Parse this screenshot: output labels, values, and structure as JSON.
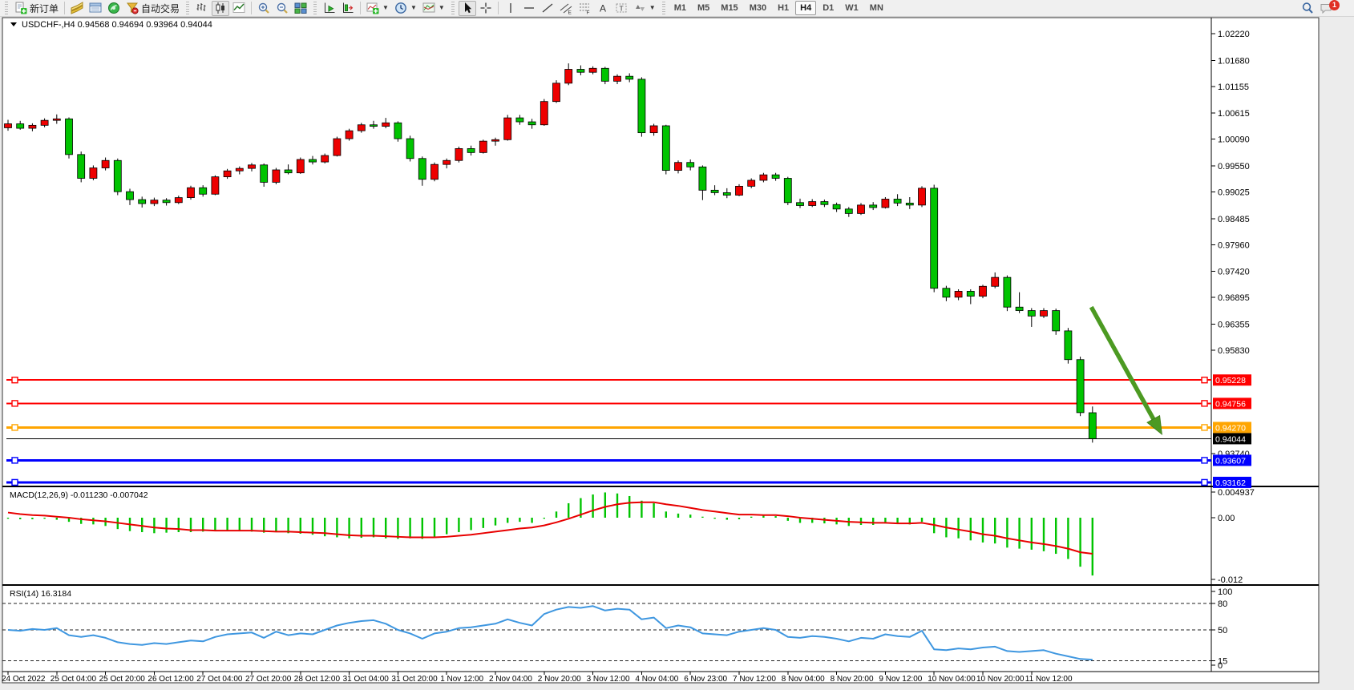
{
  "toolbar": {
    "new_order": "新订单",
    "autotrade": "自动交易",
    "timeframes": [
      "M1",
      "M5",
      "M15",
      "M30",
      "H1",
      "H4",
      "D1",
      "W1",
      "MN"
    ],
    "active_timeframe": "H4",
    "notification_badge": "1",
    "icon_names": [
      "new-order-icon",
      "market-watch-icon",
      "data-window-icon",
      "navigator-icon",
      "autotrade-icon",
      "bar-chart-icon",
      "candlestick-chart-icon",
      "line-chart-icon",
      "zoom-in-icon",
      "zoom-out-icon",
      "tile-windows-icon",
      "auto-scroll-icon",
      "chart-shift-icon",
      "add-indicator-icon",
      "periods-clock-icon",
      "templates-icon",
      "cursor-icon",
      "crosshair-icon",
      "vertical-line-icon",
      "horizontal-line-icon",
      "trendline-icon",
      "equidistant-channel-icon",
      "fibonacci-icon",
      "text-label-icon",
      "label-box-icon",
      "arrows-shapes-icon",
      "search-icon",
      "notifications-icon"
    ]
  },
  "chart_window": {
    "title_symbol": "USDCHF-,H4",
    "title_ohlc": "0.94568 0.94694 0.93964 0.94044"
  },
  "indicators": {
    "macd_label": "MACD(12,26,9)",
    "macd_values": "-0.011230 -0.007042",
    "macd_axis": [
      "0.004937",
      "0.00",
      "-0.012"
    ],
    "rsi_label": "RSI(14)",
    "rsi_value": "16.3184",
    "rsi_axis": [
      "100",
      "80",
      "50",
      "15",
      "0"
    ]
  },
  "colors": {
    "candle_up": "#ee0000",
    "candle_down": "#00c400",
    "macd_histogram": "#00c400",
    "macd_signal": "#e80000",
    "rsi_line": "#3f97e0",
    "level_red": "#ff0000",
    "level_orange": "#ffa500",
    "level_blue": "#0000ff",
    "arrow_green": "#4c9a22",
    "current_price_tag": "#000000"
  },
  "chart_data": [
    {
      "type": "candlestick",
      "symbol": "USDCHF",
      "period": "H4",
      "title": "USDCHF-,H4",
      "current_bar": {
        "open": 0.94568,
        "high": 0.94694,
        "low": 0.93964,
        "close": 0.94044
      },
      "y_axis_ticks": [
        "1.02220",
        "1.01680",
        "1.01155",
        "1.00615",
        "1.00090",
        "0.99550",
        "0.99025",
        "0.98485",
        "0.97960",
        "0.97420",
        "0.96895",
        "0.96355",
        "0.95830",
        "0.93740"
      ],
      "x_labels": [
        "24 Oct 2022",
        "25 Oct 04:00",
        "25 Oct 20:00",
        "26 Oct 12:00",
        "27 Oct 04:00",
        "27 Oct 20:00",
        "28 Oct 12:00",
        "31 Oct 04:00",
        "31 Oct 20:00",
        "1 Nov 12:00",
        "2 Nov 04:00",
        "2 Nov 20:00",
        "3 Nov 12:00",
        "4 Nov 04:00",
        "6 Nov 23:00",
        "7 Nov 12:00",
        "8 Nov 04:00",
        "8 Nov 20:00",
        "9 Nov 12:00",
        "10 Nov 04:00",
        "10 Nov 20:00",
        "11 Nov 12:00"
      ],
      "x_label_indices": [
        0,
        4,
        8,
        12,
        16,
        20,
        24,
        28,
        32,
        36,
        40,
        44,
        48,
        52,
        56,
        60,
        64,
        68,
        72,
        76,
        80,
        84
      ],
      "levels": [
        {
          "price": 0.95228,
          "color": "#ff0000",
          "width": 2
        },
        {
          "price": 0.94756,
          "color": "#ff0000",
          "width": 2
        },
        {
          "price": 0.9427,
          "color": "#ffa500",
          "width": 3
        },
        {
          "price": 0.93607,
          "color": "#0000ff",
          "width": 3
        },
        {
          "price": 0.93162,
          "color": "#0000ff",
          "width": 3
        }
      ],
      "current_price": 0.94044,
      "arrow": {
        "from_index": 88.9,
        "from_price": 0.967,
        "to_index": 94.7,
        "to_price": 0.9413,
        "color": "#4c9a22"
      },
      "candles": [
        [
          1.0032,
          1.0048,
          1.0026,
          1.004
        ],
        [
          1.004,
          1.0046,
          1.0028,
          1.0031
        ],
        [
          1.0031,
          1.0041,
          1.0025,
          1.0037
        ],
        [
          1.0037,
          1.0051,
          1.0033,
          1.0047
        ],
        [
          1.0047,
          1.0059,
          1.004,
          1.005
        ],
        [
          1.005,
          1.0053,
          0.997,
          0.9978
        ],
        [
          0.9978,
          0.9984,
          0.9922,
          0.993
        ],
        [
          0.993,
          0.9956,
          0.9926,
          0.9951
        ],
        [
          0.9951,
          0.9972,
          0.9946,
          0.9966
        ],
        [
          0.9966,
          0.997,
          0.9896,
          0.9903
        ],
        [
          0.9903,
          0.9909,
          0.9876,
          0.9887
        ],
        [
          0.9887,
          0.9893,
          0.9871,
          0.9879
        ],
        [
          0.9879,
          0.9891,
          0.9874,
          0.9886
        ],
        [
          0.9886,
          0.989,
          0.9875,
          0.9881
        ],
        [
          0.9881,
          0.9895,
          0.9878,
          0.9891
        ],
        [
          0.9891,
          0.9915,
          0.9887,
          0.9911
        ],
        [
          0.9911,
          0.9916,
          0.9893,
          0.9898
        ],
        [
          0.9898,
          0.9936,
          0.9896,
          0.9933
        ],
        [
          0.9933,
          0.9949,
          0.9929,
          0.9945
        ],
        [
          0.9945,
          0.9954,
          0.9938,
          0.995
        ],
        [
          0.995,
          0.9961,
          0.9944,
          0.9957
        ],
        [
          0.9957,
          0.996,
          0.9913,
          0.9922
        ],
        [
          0.9922,
          0.9951,
          0.9918,
          0.9947
        ],
        [
          0.9947,
          0.9958,
          0.9938,
          0.9941
        ],
        [
          0.9941,
          0.9972,
          0.9939,
          0.9968
        ],
        [
          0.9968,
          0.9975,
          0.9958,
          0.9963
        ],
        [
          0.9963,
          0.998,
          0.996,
          0.9976
        ],
        [
          0.9976,
          1.0014,
          0.9974,
          1.001
        ],
        [
          1.001,
          1.003,
          1.0006,
          1.0026
        ],
        [
          1.0026,
          1.0042,
          1.0022,
          1.0038
        ],
        [
          1.0038,
          1.0046,
          1.003,
          1.0035
        ],
        [
          1.0035,
          1.0052,
          1.0031,
          1.0042
        ],
        [
          1.0042,
          1.0045,
          1.0004,
          1.001
        ],
        [
          1.001,
          1.0016,
          0.9964,
          0.997
        ],
        [
          0.997,
          0.9974,
          0.9915,
          0.9928
        ],
        [
          0.9928,
          0.9962,
          0.9924,
          0.9958
        ],
        [
          0.9958,
          0.997,
          0.995,
          0.9966
        ],
        [
          0.9966,
          0.9994,
          0.9962,
          0.999
        ],
        [
          0.999,
          0.9996,
          0.9976,
          0.9982
        ],
        [
          0.9982,
          1.0008,
          0.998,
          1.0005
        ],
        [
          1.0005,
          1.0012,
          0.9996,
          1.0008
        ],
        [
          1.0008,
          1.0058,
          1.0006,
          1.0052
        ],
        [
          1.0052,
          1.0058,
          1.0038,
          1.0044
        ],
        [
          1.0044,
          1.005,
          1.003,
          1.0038
        ],
        [
          1.0038,
          1.009,
          1.0036,
          1.0085
        ],
        [
          1.0085,
          1.0128,
          1.0082,
          1.0122
        ],
        [
          1.0122,
          1.0162,
          1.0118,
          1.015
        ],
        [
          1.015,
          1.0158,
          1.0138,
          1.0144
        ],
        [
          1.0144,
          1.0156,
          1.014,
          1.0152
        ],
        [
          1.0152,
          1.0155,
          1.012,
          1.0126
        ],
        [
          1.0126,
          1.014,
          1.012,
          1.0136
        ],
        [
          1.0136,
          1.0142,
          1.0124,
          1.013
        ],
        [
          1.013,
          1.0134,
          1.0014,
          1.0022
        ],
        [
          1.0022,
          1.004,
          1.0016,
          1.0036
        ],
        [
          1.0036,
          1.0038,
          0.9938,
          0.9946
        ],
        [
          0.9946,
          0.9966,
          0.994,
          0.9962
        ],
        [
          0.9962,
          0.9968,
          0.9946,
          0.9953
        ],
        [
          0.9953,
          0.9956,
          0.9886,
          0.9906
        ],
        [
          0.9906,
          0.9916,
          0.9896,
          0.9901
        ],
        [
          0.9901,
          0.991,
          0.989,
          0.9896
        ],
        [
          0.9896,
          0.9918,
          0.9894,
          0.9914
        ],
        [
          0.9914,
          0.993,
          0.991,
          0.9926
        ],
        [
          0.9926,
          0.9941,
          0.9922,
          0.9937
        ],
        [
          0.9937,
          0.9941,
          0.9925,
          0.993
        ],
        [
          0.993,
          0.9933,
          0.9876,
          0.9881
        ],
        [
          0.9881,
          0.9889,
          0.987,
          0.9875
        ],
        [
          0.9875,
          0.9888,
          0.9872,
          0.9883
        ],
        [
          0.9883,
          0.9887,
          0.9872,
          0.9877
        ],
        [
          0.9877,
          0.9881,
          0.9862,
          0.9868
        ],
        [
          0.9868,
          0.9872,
          0.9852,
          0.9859
        ],
        [
          0.9859,
          0.988,
          0.9856,
          0.9876
        ],
        [
          0.9876,
          0.9882,
          0.9866,
          0.9871
        ],
        [
          0.9871,
          0.9892,
          0.9869,
          0.9888
        ],
        [
          0.9888,
          0.9898,
          0.9874,
          0.988
        ],
        [
          0.988,
          0.9892,
          0.9868,
          0.9876
        ],
        [
          0.9876,
          0.9914,
          0.9872,
          0.991
        ],
        [
          0.991,
          0.9917,
          0.97,
          0.9708
        ],
        [
          0.9708,
          0.9713,
          0.9682,
          0.969
        ],
        [
          0.969,
          0.9706,
          0.9684,
          0.9702
        ],
        [
          0.9702,
          0.9706,
          0.9676,
          0.9692
        ],
        [
          0.9692,
          0.9715,
          0.9688,
          0.9712
        ],
        [
          0.9712,
          0.974,
          0.9708,
          0.973
        ],
        [
          0.973,
          0.9734,
          0.9662,
          0.967
        ],
        [
          0.967,
          0.97,
          0.9658,
          0.9663
        ],
        [
          0.9663,
          0.9668,
          0.963,
          0.9652
        ],
        [
          0.9652,
          0.9668,
          0.9648,
          0.9663
        ],
        [
          0.9663,
          0.9667,
          0.9614,
          0.9622
        ],
        [
          0.9622,
          0.9628,
          0.9556,
          0.9564
        ],
        [
          0.9564,
          0.957,
          0.945,
          0.9457
        ],
        [
          0.94568,
          0.94694,
          0.93964,
          0.94044
        ]
      ]
    },
    {
      "type": "bar",
      "name": "MACD(12,26,9)",
      "current_macd": -0.01123,
      "current_signal": -0.007042,
      "y_axis": [
        0.004937,
        0,
        -0.012
      ],
      "histogram_color": "#00c400",
      "signal_color": "#e80000",
      "histogram": [
        -0.0002,
        -0.0003,
        -0.0003,
        -0.0002,
        -0.0004,
        -0.0008,
        -0.0012,
        -0.0013,
        -0.0016,
        -0.0022,
        -0.0026,
        -0.0028,
        -0.003,
        -0.0029,
        -0.0028,
        -0.0028,
        -0.0027,
        -0.0026,
        -0.0025,
        -0.0026,
        -0.0027,
        -0.0029,
        -0.0028,
        -0.003,
        -0.0031,
        -0.0033,
        -0.0036,
        -0.0038,
        -0.004,
        -0.0039,
        -0.0038,
        -0.004,
        -0.0041,
        -0.004,
        -0.0041,
        -0.0037,
        -0.0032,
        -0.0028,
        -0.0024,
        -0.002,
        -0.0015,
        -0.001,
        -0.0008,
        -0.001,
        -0.0002,
        0.0012,
        0.0028,
        0.0038,
        0.0045,
        0.0049,
        0.0047,
        0.0042,
        0.0033,
        0.0028,
        0.0012,
        0.0008,
        0.0006,
        0.0002,
        -0.0002,
        -0.0004,
        -0.0003,
        0.0002,
        0.0004,
        0.0003,
        -0.0006,
        -0.001,
        -0.001,
        -0.0011,
        -0.0013,
        -0.0016,
        -0.0014,
        -0.0014,
        -0.0011,
        -0.0012,
        -0.0013,
        -0.0008,
        -0.003,
        -0.0038,
        -0.004,
        -0.0044,
        -0.0048,
        -0.005,
        -0.0058,
        -0.006,
        -0.0062,
        -0.0065,
        -0.007,
        -0.008,
        -0.0095,
        -0.0112
      ],
      "signal": [
        0.001,
        0.0007,
        0.0005,
        0.0004,
        0.0002,
        0.0,
        -0.0003,
        -0.0005,
        -0.0007,
        -0.001,
        -0.0013,
        -0.0016,
        -0.0019,
        -0.0021,
        -0.0022,
        -0.0024,
        -0.0024,
        -0.0025,
        -0.0025,
        -0.0025,
        -0.0025,
        -0.0026,
        -0.0027,
        -0.0027,
        -0.0028,
        -0.0029,
        -0.003,
        -0.0032,
        -0.0034,
        -0.0035,
        -0.0035,
        -0.0036,
        -0.0037,
        -0.0038,
        -0.0038,
        -0.0038,
        -0.0037,
        -0.0035,
        -0.0033,
        -0.003,
        -0.0027,
        -0.0024,
        -0.0021,
        -0.0019,
        -0.0015,
        -0.0009,
        -0.0002,
        0.0006,
        0.0014,
        0.0021,
        0.0026,
        0.0029,
        0.003,
        0.003,
        0.0026,
        0.0023,
        0.0019,
        0.0015,
        0.0012,
        0.0009,
        0.0006,
        0.0006,
        0.0005,
        0.0005,
        0.0003,
        0.0,
        -0.0002,
        -0.0004,
        -0.0006,
        -0.0008,
        -0.0009,
        -0.001,
        -0.001,
        -0.0011,
        -0.0011,
        -0.001,
        -0.0014,
        -0.0019,
        -0.0023,
        -0.0027,
        -0.0032,
        -0.0035,
        -0.004,
        -0.0044,
        -0.0048,
        -0.0051,
        -0.0055,
        -0.006,
        -0.0067,
        -0.007
      ]
    },
    {
      "type": "line",
      "name": "RSI(14)",
      "current": 16.3184,
      "ylim": [
        0,
        100
      ],
      "levels": [
        80,
        50,
        15
      ],
      "y_axis": [
        100,
        80,
        50,
        15,
        0
      ],
      "color": "#3f97e0",
      "values": [
        50,
        49,
        51,
        50,
        52,
        44,
        42,
        44,
        41,
        36,
        34,
        33,
        35,
        34,
        36,
        38,
        37,
        42,
        45,
        46,
        47,
        41,
        48,
        44,
        46,
        45,
        50,
        55,
        58,
        60,
        61,
        57,
        50,
        46,
        40,
        46,
        48,
        52,
        53,
        55,
        57,
        62,
        58,
        55,
        68,
        73,
        76,
        75,
        77,
        72,
        74,
        73,
        62,
        64,
        52,
        55,
        53,
        46,
        45,
        44,
        48,
        50,
        52,
        50,
        42,
        41,
        43,
        42,
        40,
        37,
        41,
        40,
        45,
        43,
        42,
        49,
        28,
        27,
        29,
        28,
        30,
        31,
        26,
        25,
        26,
        27,
        23,
        20,
        17,
        16.3
      ]
    }
  ]
}
